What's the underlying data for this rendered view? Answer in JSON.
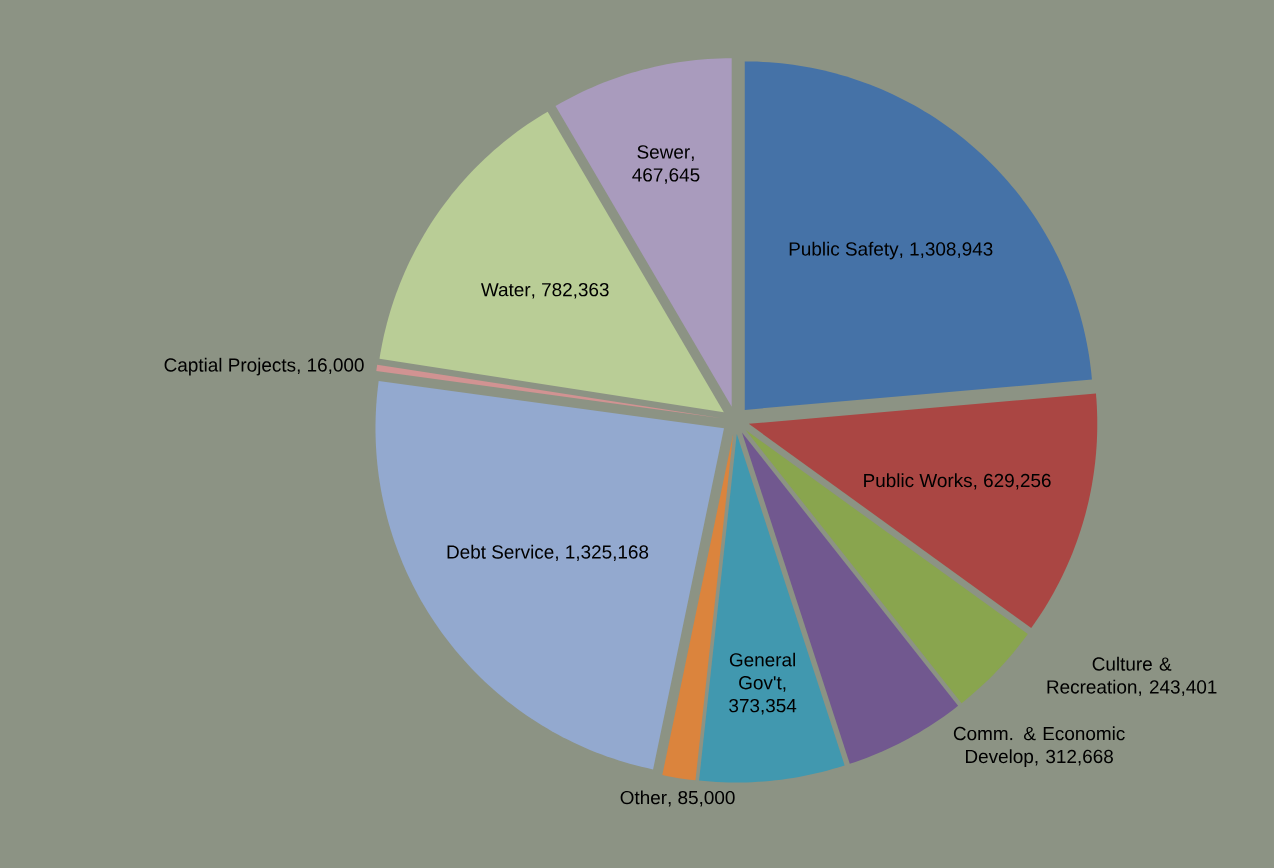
{
  "chart_data": {
    "type": "pie",
    "categories": [
      "Public Safety",
      "Public Works",
      "Culture & Recreation",
      "Comm. & Economic Develop",
      "General Gov't",
      "Other",
      "Debt Service",
      "Captial Projects",
      "Water",
      "Sewer"
    ],
    "values": [
      1308943,
      629256,
      243401,
      312668,
      373354,
      85000,
      1325168,
      16000,
      782363,
      467645
    ],
    "colors": [
      "#4572a7",
      "#aa4643",
      "#89a54e",
      "#71588f",
      "#4198af",
      "#db843d",
      "#93a9cf",
      "#d19392",
      "#b9cd96",
      "#a99bbd"
    ],
    "value_labels": [
      ", 1,308,943",
      ", 629,256",
      ", 243,401",
      ", 312,668",
      ", 373,354",
      ", 85,000",
      ", 1,325,168",
      ", 16,000",
      ", 782,363",
      ", 467,645"
    ]
  }
}
